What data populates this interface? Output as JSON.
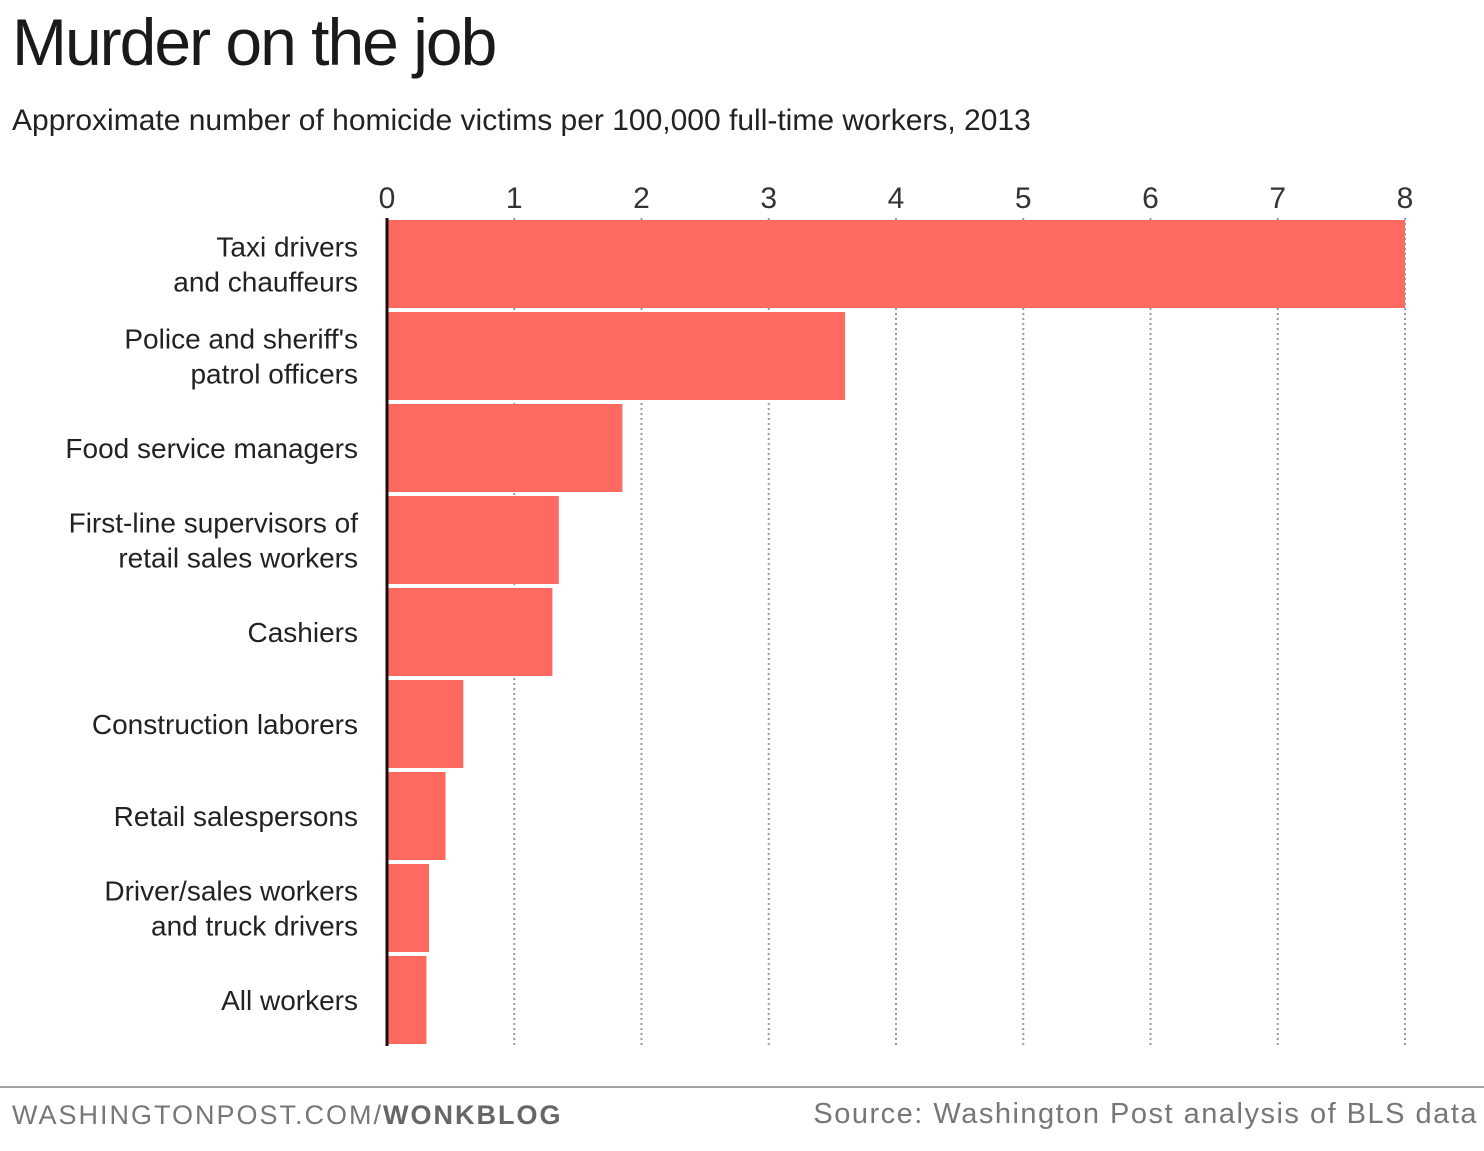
{
  "title": "Murder on the job",
  "subtitle": "Approximate number of homicide victims per 100,000 full-time workers, 2013",
  "footer": {
    "site": "WASHINGTONPOST.COM/",
    "blog": "WONKBLOG",
    "source": "Source: Washington Post analysis of BLS data"
  },
  "colors": {
    "bar": "#fe6a62",
    "axis": "#111111",
    "grid": "#9a9a9a",
    "text": "#222222"
  },
  "chart_data": {
    "type": "bar",
    "orientation": "horizontal",
    "title": "Murder on the job",
    "subtitle": "Approximate number of homicide victims per 100,000 full-time workers, 2013",
    "xlabel": "",
    "ylabel": "",
    "xlim": [
      0,
      8
    ],
    "ticks": [
      0,
      1,
      2,
      3,
      4,
      5,
      6,
      7,
      8
    ],
    "grid": true,
    "categories": [
      [
        "Taxi drivers",
        "and chauffeurs"
      ],
      [
        "Police and sheriff's",
        "patrol officers"
      ],
      [
        "Food service managers"
      ],
      [
        "First-line supervisors of",
        "retail sales workers"
      ],
      [
        "Cashiers"
      ],
      [
        "Construction laborers"
      ],
      [
        "Retail salespersons"
      ],
      [
        "Driver/sales workers",
        "and truck drivers"
      ],
      [
        "All workers"
      ]
    ],
    "values": [
      8.0,
      3.6,
      1.85,
      1.35,
      1.3,
      0.6,
      0.46,
      0.33,
      0.31
    ]
  }
}
